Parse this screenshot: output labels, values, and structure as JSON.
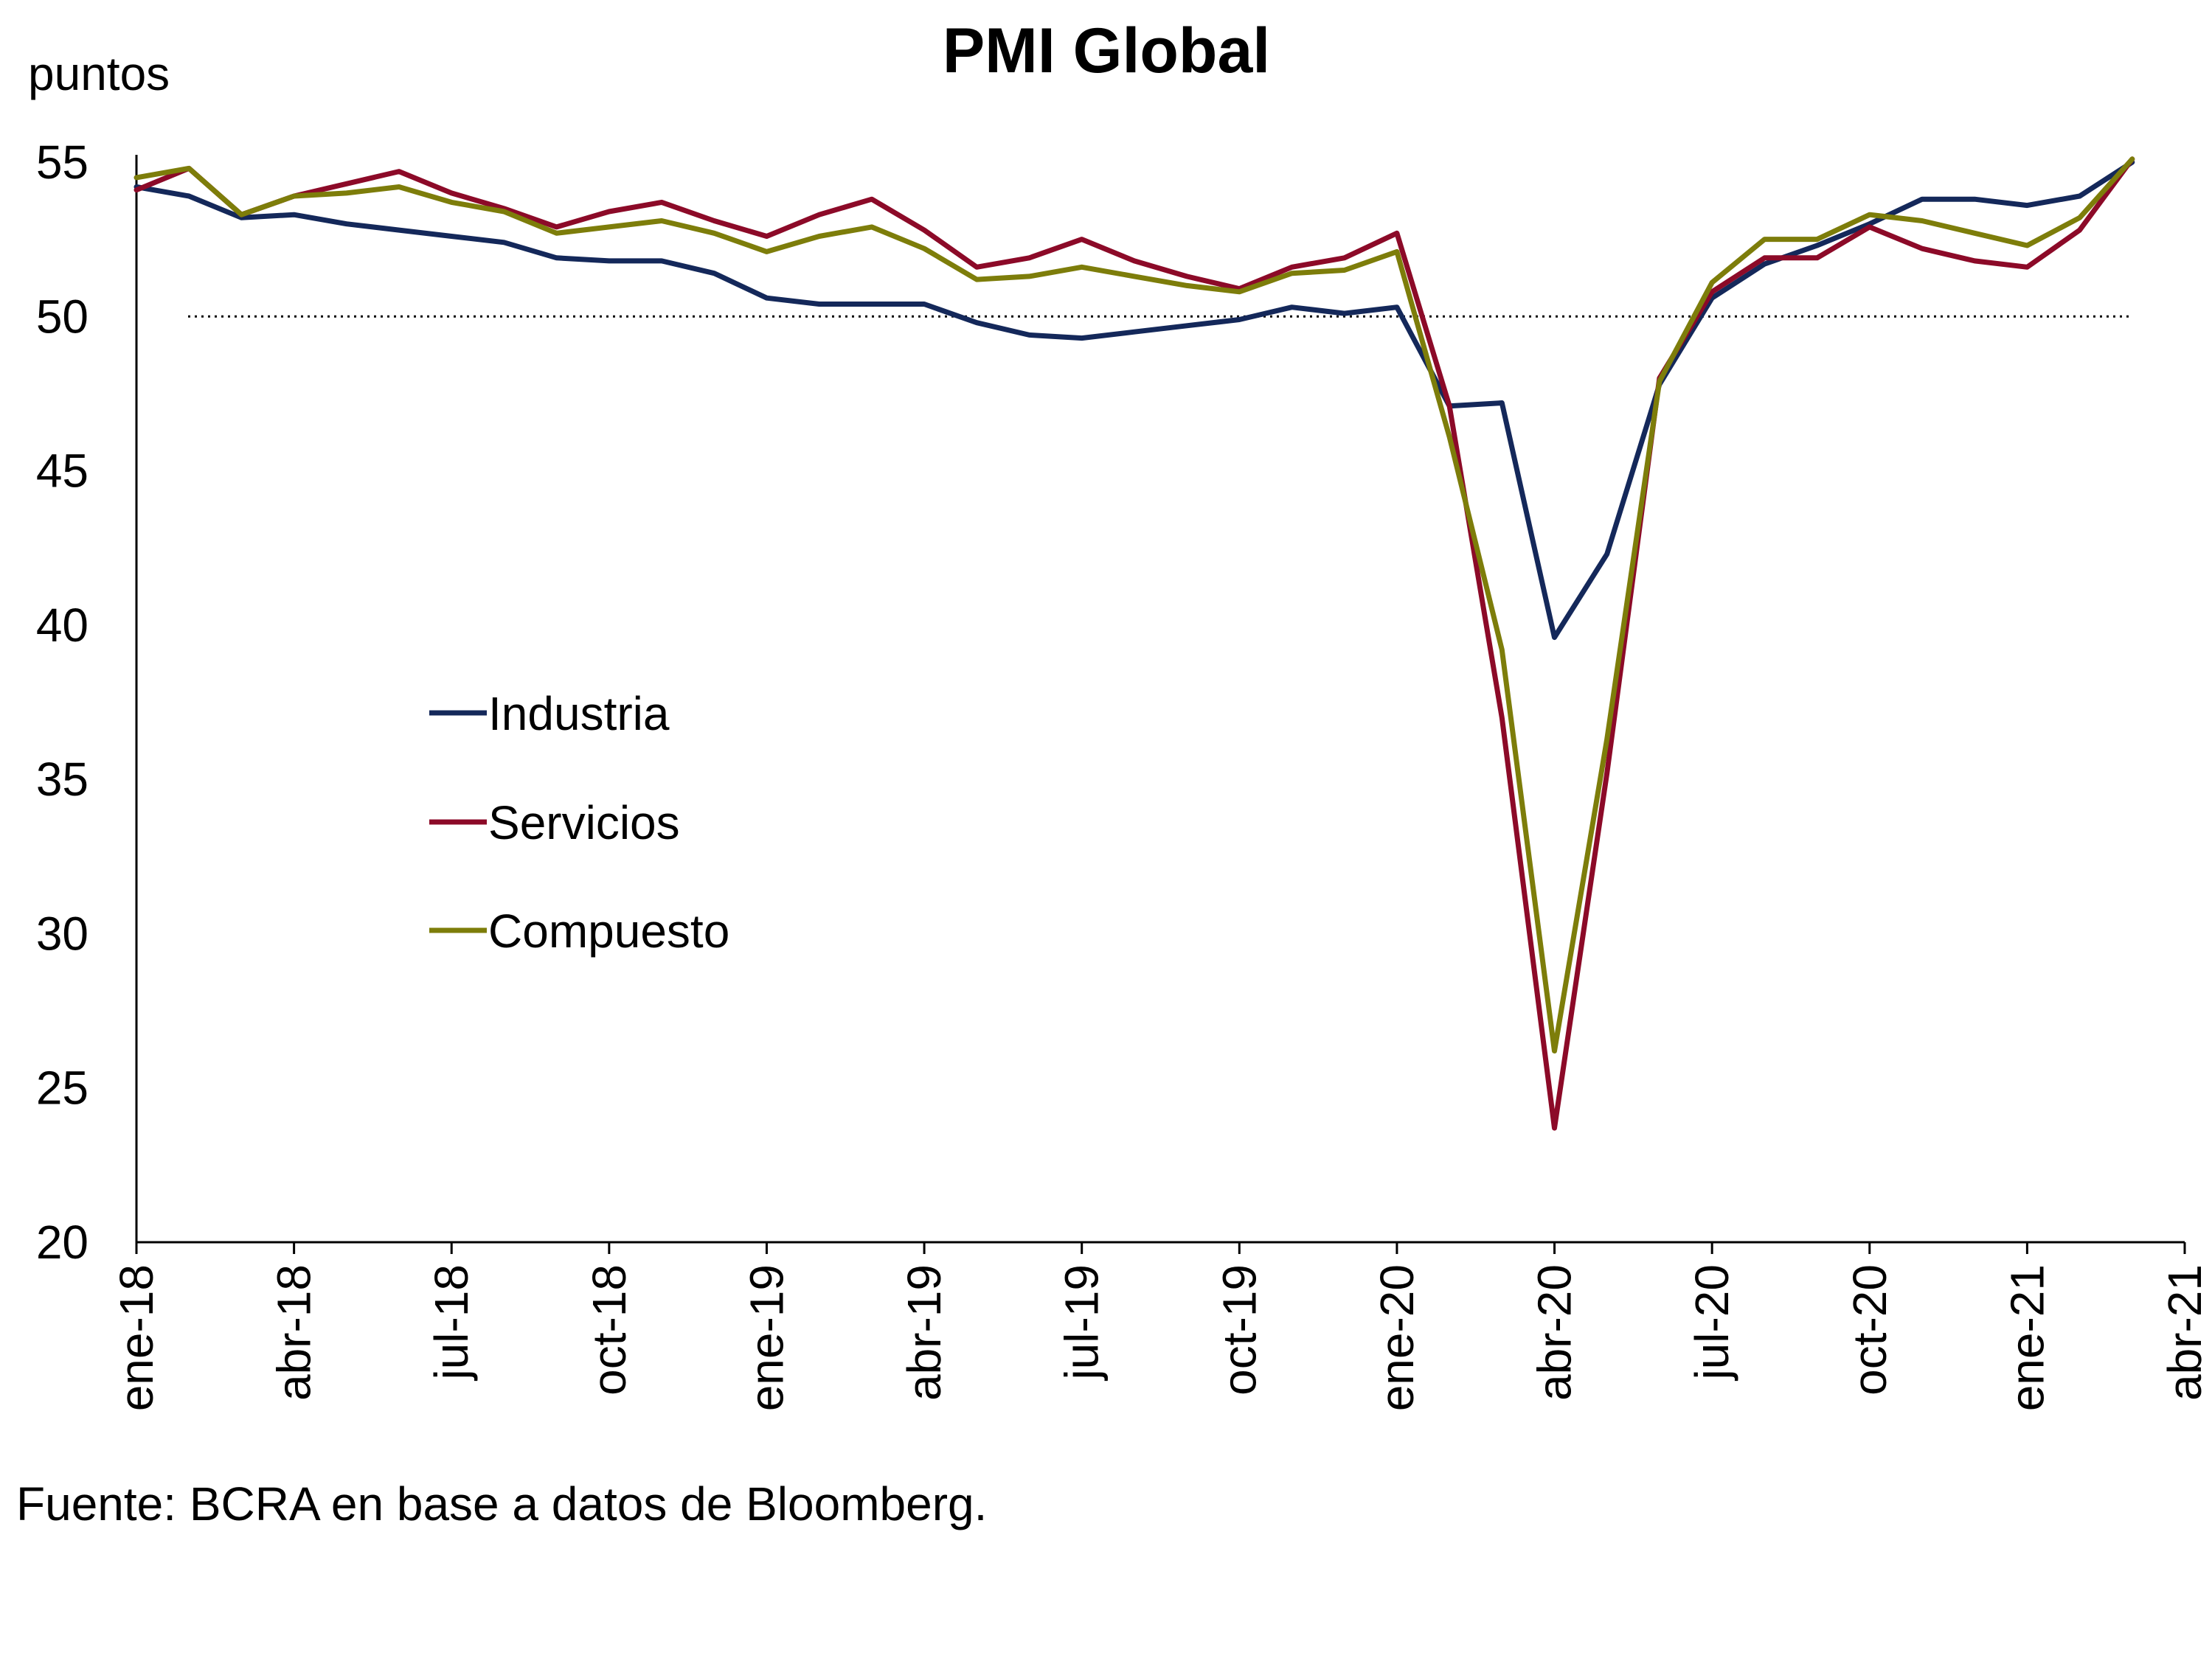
{
  "chart_data": {
    "type": "line",
    "title": "PMI Global",
    "ylabel": "puntos",
    "source": "Fuente: BCRA en base a datos de Bloomberg.",
    "ylim": [
      20,
      55
    ],
    "yticks": [
      20,
      25,
      30,
      35,
      40,
      45,
      50,
      55
    ],
    "reference_line": 50,
    "x_tick_labels": [
      "ene-18",
      "abr-18",
      "jul-18",
      "oct-18",
      "ene-19",
      "abr-19",
      "jul-19",
      "oct-19",
      "ene-20",
      "abr-20",
      "jul-20",
      "oct-20",
      "ene-21",
      "abr-21"
    ],
    "x": [
      "ene-18",
      "feb-18",
      "mar-18",
      "abr-18",
      "may-18",
      "jun-18",
      "jul-18",
      "ago-18",
      "sep-18",
      "oct-18",
      "nov-18",
      "dic-18",
      "ene-19",
      "feb-19",
      "mar-19",
      "abr-19",
      "may-19",
      "jun-19",
      "jul-19",
      "ago-19",
      "sep-19",
      "oct-19",
      "nov-19",
      "dic-19",
      "ene-20",
      "feb-20",
      "mar-20",
      "abr-20",
      "may-20",
      "jun-20",
      "jul-20",
      "ago-20",
      "sep-20",
      "oct-20",
      "nov-20",
      "dic-20",
      "ene-21",
      "feb-21",
      "mar-21"
    ],
    "legend_position": "center-left",
    "series": [
      {
        "name": "Industria",
        "color": "#14285a",
        "values": [
          54.2,
          53.9,
          53.2,
          53.3,
          53.0,
          52.8,
          52.6,
          52.4,
          51.9,
          51.8,
          51.8,
          51.4,
          50.6,
          50.4,
          50.4,
          50.4,
          49.8,
          49.4,
          49.3,
          49.5,
          49.7,
          49.9,
          50.3,
          50.1,
          50.3,
          47.1,
          47.2,
          39.6,
          42.3,
          47.8,
          50.6,
          51.7,
          52.3,
          53.0,
          53.8,
          53.8,
          53.6,
          53.9,
          55.0
        ]
      },
      {
        "name": "Servicios",
        "color": "#8c0a28",
        "values": [
          54.1,
          54.8,
          53.3,
          53.9,
          54.3,
          54.7,
          54.0,
          53.5,
          52.9,
          53.4,
          53.7,
          53.1,
          52.6,
          53.3,
          53.8,
          52.8,
          51.6,
          51.9,
          52.5,
          51.8,
          51.3,
          50.9,
          51.6,
          51.9,
          52.7,
          47.1,
          37.0,
          23.7,
          35.2,
          48.0,
          50.8,
          51.9,
          51.9,
          52.9,
          52.2,
          51.8,
          51.6,
          52.8,
          55.1
        ]
      },
      {
        "name": "Compuesto",
        "color": "#7d7d0a",
        "values": [
          54.5,
          54.8,
          53.3,
          53.9,
          54.0,
          54.2,
          53.7,
          53.4,
          52.7,
          52.9,
          53.1,
          52.7,
          52.1,
          52.6,
          52.9,
          52.2,
          51.2,
          51.3,
          51.6,
          51.3,
          51.0,
          50.8,
          51.4,
          51.5,
          52.1,
          46.1,
          39.2,
          26.2,
          36.3,
          47.9,
          51.1,
          52.5,
          52.5,
          53.3,
          53.1,
          52.7,
          52.3,
          53.2,
          55.1
        ]
      }
    ]
  }
}
